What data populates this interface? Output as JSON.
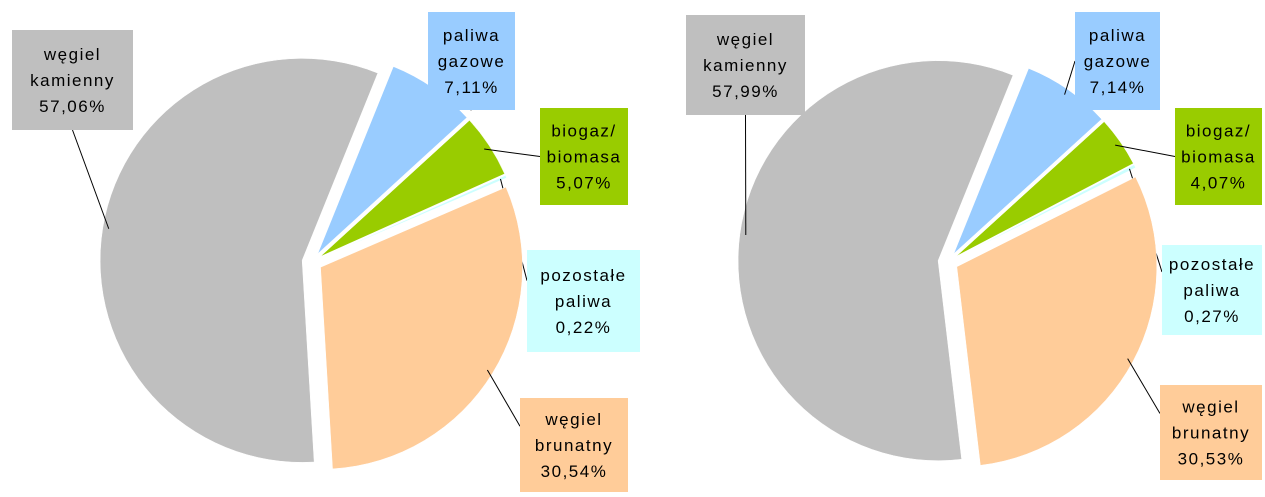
{
  "chart_data": [
    {
      "type": "pie",
      "categories": [
        "paliwa gazowe",
        "biogaz/ biomasa",
        "pozostałe paliwa",
        "węgiel brunatny",
        "węgiel kamienny"
      ],
      "values": [
        7.11,
        5.07,
        0.22,
        30.54,
        57.06
      ],
      "value_labels": [
        "7,11%",
        "5,07%",
        "0,22%",
        "30,54%",
        "57,06%"
      ],
      "colors": [
        "#99ccff",
        "#99cc00",
        "#ccffff",
        "#ffcc99",
        "#bfbfbf"
      ]
    },
    {
      "type": "pie",
      "categories": [
        "paliwa gazowe",
        "biogaz/ biomasa",
        "pozostałe paliwa",
        "węgiel brunatny",
        "węgiel kamienny"
      ],
      "values": [
        7.14,
        4.07,
        0.27,
        30.53,
        57.99
      ],
      "value_labels": [
        "7,14%",
        "4,07%",
        "0,27%",
        "30,53%",
        "57,99%"
      ],
      "colors": [
        "#99ccff",
        "#99cc00",
        "#ccffff",
        "#ffcc99",
        "#bfbfbf"
      ]
    }
  ]
}
